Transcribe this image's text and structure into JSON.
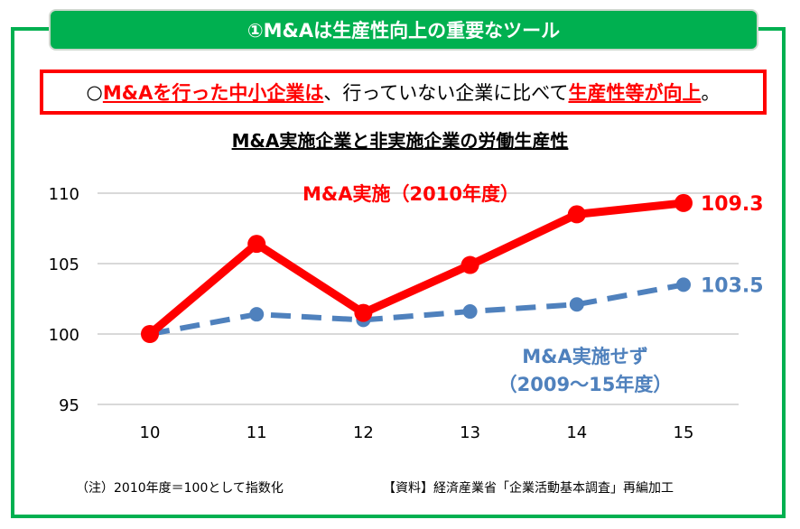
{
  "banner": "①M&Aは生産性向上の重要なツール",
  "message": {
    "prefix": "○",
    "part1": "M&Aを行った中小企業は",
    "part2": "、行っていない企業に比べて",
    "part3": "生産性等が向上",
    "suffix": "。"
  },
  "colors": {
    "accent": "#00b050",
    "red": "#ff0000",
    "blue": "#4f81bd"
  },
  "chart_data": {
    "type": "line",
    "title": "M&A実施企業と非実施企業の労働生産性",
    "categories": [
      "10",
      "11",
      "12",
      "13",
      "14",
      "15"
    ],
    "ylim": [
      95,
      110
    ],
    "yticks": [
      "95",
      "100",
      "105",
      "110"
    ],
    "grid": true,
    "series": [
      {
        "name": "M&A実施（2010年度）",
        "values": [
          100,
          106.4,
          101.5,
          104.9,
          108.5,
          109.3
        ],
        "end_label": "109.3",
        "color": "#ff0000",
        "style": "solid"
      },
      {
        "name": "M&A実施せず",
        "name2": "（2009～15年度）",
        "values": [
          100,
          101.4,
          101.0,
          101.6,
          102.1,
          103.5
        ],
        "end_label": "103.5",
        "color": "#4f81bd",
        "style": "dashed"
      }
    ]
  },
  "notes": {
    "left": "（注）2010年度＝100として指数化",
    "right": "【資料】経済産業省「企業活動基本調査」再編加工"
  }
}
